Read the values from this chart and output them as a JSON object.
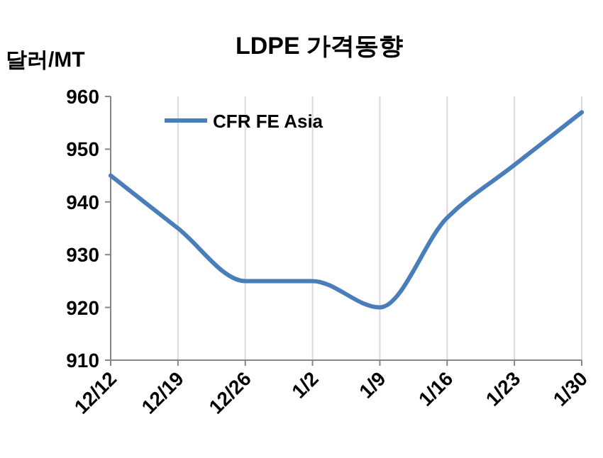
{
  "chart_data": {
    "type": "line",
    "title": "LDPE 가격동향",
    "ylabel": "달러/MT",
    "categories": [
      "12/12",
      "12/19",
      "12/26",
      "1/2",
      "1/9",
      "1/16",
      "1/23",
      "1/30"
    ],
    "series": [
      {
        "name": "CFR FE Asia",
        "color": "#4a7ebb",
        "values": [
          945,
          935,
          925,
          925,
          920,
          937,
          947,
          957
        ]
      }
    ],
    "ylim": [
      910,
      960
    ],
    "yticks": [
      910,
      920,
      930,
      940,
      950,
      960
    ],
    "grid": "x",
    "legend": "top left",
    "marker": "none",
    "line_style": "solid"
  }
}
